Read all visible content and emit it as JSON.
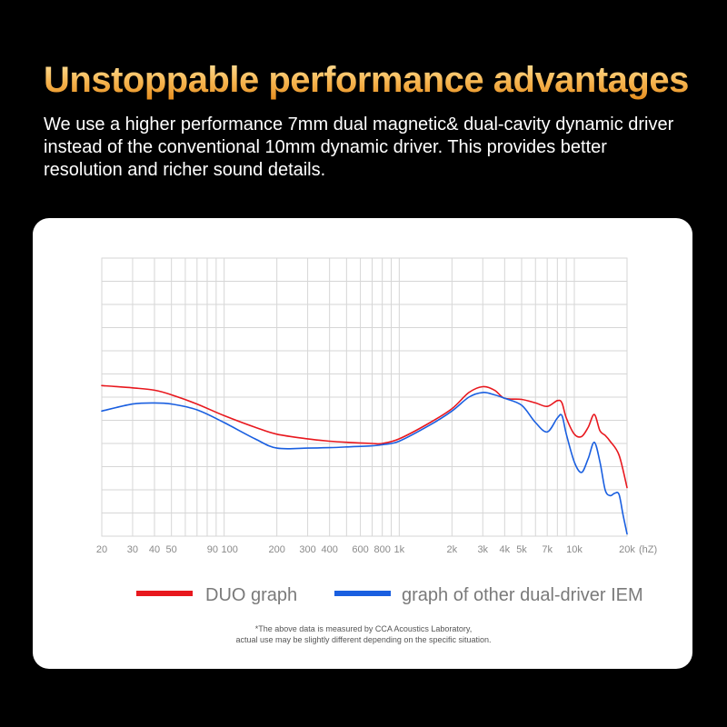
{
  "header": {
    "title": "Unstoppable performance advantages",
    "description": "We use a higher performance 7mm dual magnetic& dual-cavity dynamic driver instead of the conventional 10mm dynamic driver. This provides better resolution and richer sound details."
  },
  "footnote": {
    "line1": "*The above data is measured by CCA Acoustics Laboratory,",
    "line2": "actual use may be slightly different depending on the specific situation."
  },
  "colors": {
    "background": "#000000",
    "card": "#ffffff",
    "grid": "#d6d6d6",
    "duo": "#e8181e",
    "other": "#1a5fe0"
  },
  "chart_data": {
    "type": "line",
    "x_scale": "log",
    "xlim": [
      20,
      20000
    ],
    "grid": true,
    "legend_position": "bottom",
    "x_unit": "(hZ)",
    "x_ticks": [
      {
        "value": 20,
        "label": "20"
      },
      {
        "value": 30,
        "label": "30"
      },
      {
        "value": 40,
        "label": "40"
      },
      {
        "value": 50,
        "label": "50"
      },
      {
        "value": 90,
        "label": "90"
      },
      {
        "value": 100,
        "label": "100"
      },
      {
        "value": 200,
        "label": "200"
      },
      {
        "value": 300,
        "label": "300"
      },
      {
        "value": 400,
        "label": "400"
      },
      {
        "value": 600,
        "label": "600"
      },
      {
        "value": 800,
        "label": "800"
      },
      {
        "value": 1000,
        "label": "1k"
      },
      {
        "value": 2000,
        "label": "2k"
      },
      {
        "value": 3000,
        "label": "3k"
      },
      {
        "value": 4000,
        "label": "4k"
      },
      {
        "value": 5000,
        "label": "5k"
      },
      {
        "value": 7000,
        "label": "7k"
      },
      {
        "value": 10000,
        "label": "10k"
      },
      {
        "value": 20000,
        "label": "20k"
      }
    ],
    "grid_x": [
      20,
      30,
      40,
      50,
      60,
      70,
      80,
      90,
      100,
      200,
      300,
      400,
      500,
      600,
      700,
      800,
      900,
      1000,
      2000,
      3000,
      4000,
      5000,
      6000,
      7000,
      8000,
      9000,
      10000,
      20000
    ],
    "y_grid_count": 12,
    "ylim": [
      0,
      12
    ],
    "series": [
      {
        "name": "DUO graph",
        "color": "#e8181e",
        "x": [
          20,
          30,
          40,
          50,
          70,
          100,
          150,
          200,
          300,
          400,
          500,
          700,
          800,
          1000,
          1500,
          2000,
          2500,
          3000,
          3500,
          4000,
          5000,
          6000,
          7000,
          8000,
          8500,
          9000,
          10000,
          11000,
          12000,
          13000,
          14000,
          15000,
          16000,
          18000,
          20000
        ],
        "y": [
          6.5,
          6.4,
          6.3,
          6.1,
          5.7,
          5.2,
          4.7,
          4.4,
          4.2,
          4.1,
          4.05,
          4.0,
          4.0,
          4.2,
          4.9,
          5.5,
          6.2,
          6.45,
          6.3,
          5.95,
          5.9,
          5.75,
          5.6,
          5.85,
          5.75,
          5.1,
          4.4,
          4.3,
          4.7,
          5.25,
          4.55,
          4.35,
          4.1,
          3.5,
          2.1
        ]
      },
      {
        "name": "graph of other dual-driver IEM",
        "color": "#1a5fe0",
        "x": [
          20,
          30,
          40,
          50,
          70,
          100,
          150,
          200,
          300,
          400,
          500,
          700,
          800,
          1000,
          1500,
          2000,
          2500,
          3000,
          3500,
          4000,
          5000,
          6000,
          7000,
          8000,
          8500,
          9000,
          10000,
          11000,
          12000,
          13000,
          14000,
          15000,
          16000,
          17000,
          18000,
          19000,
          20000
        ],
        "y": [
          5.4,
          5.7,
          5.75,
          5.7,
          5.45,
          4.9,
          4.2,
          3.8,
          3.8,
          3.82,
          3.85,
          3.9,
          3.95,
          4.1,
          4.8,
          5.4,
          6.0,
          6.2,
          6.1,
          5.95,
          5.65,
          4.9,
          4.5,
          5.1,
          5.2,
          4.4,
          3.2,
          2.75,
          3.35,
          4.05,
          3.2,
          2.0,
          1.75,
          1.85,
          1.8,
          0.9,
          0.1
        ]
      }
    ]
  }
}
